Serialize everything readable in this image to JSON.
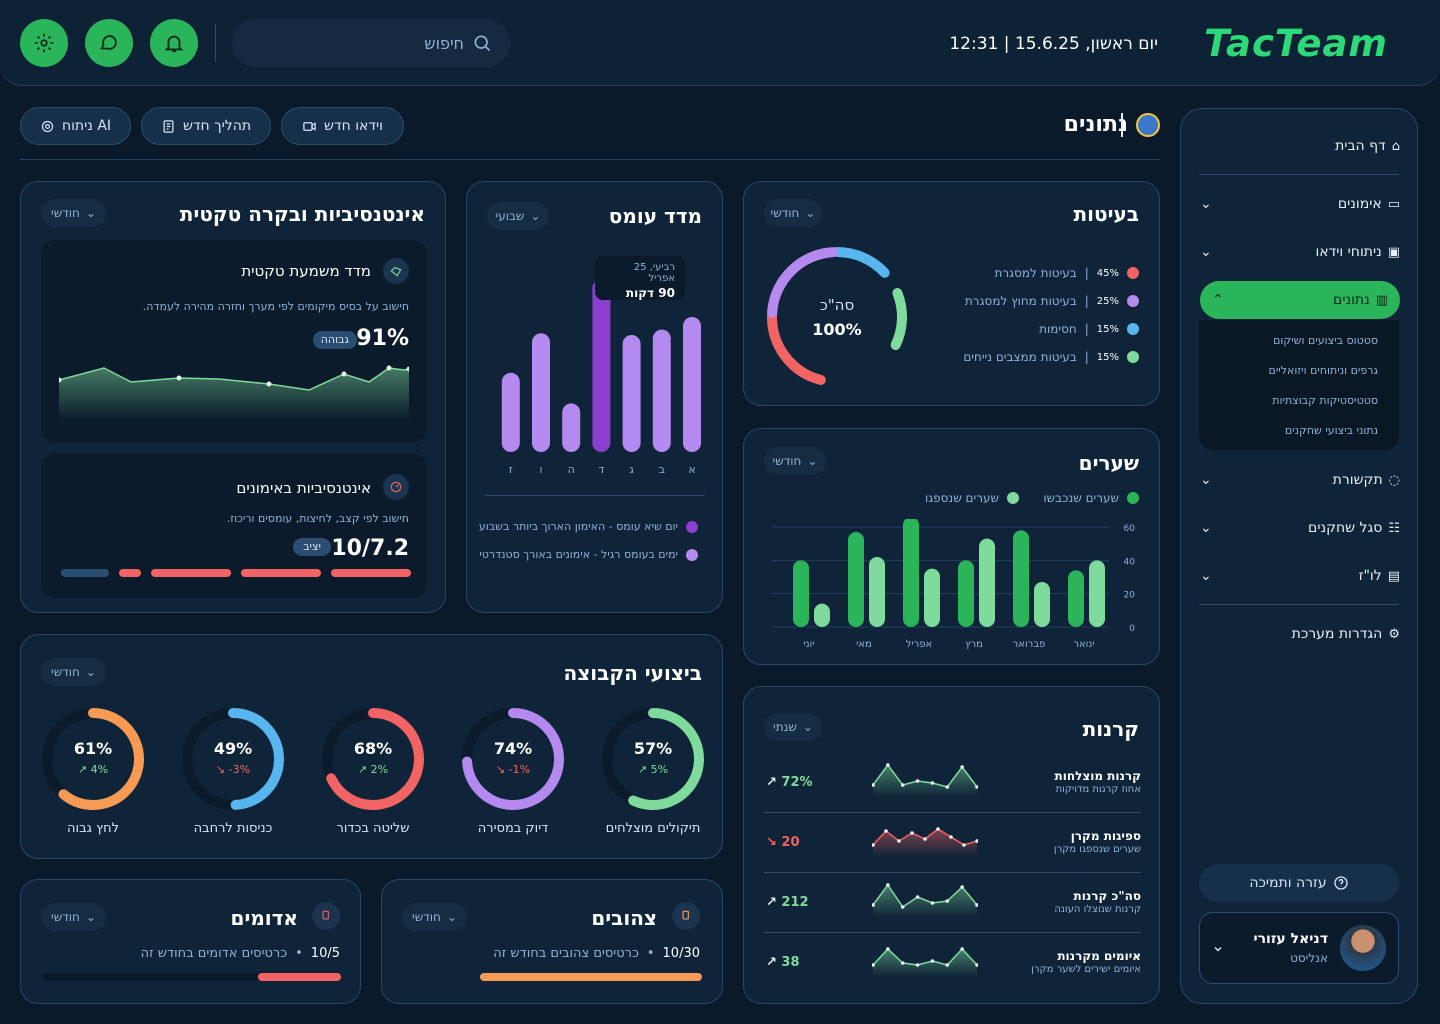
{
  "colors": {
    "accent": "#2bb55a",
    "bg": "#0b1a2b",
    "panel": "#0f2438",
    "red": "#f26363",
    "purple": "#b58af0",
    "blue": "#58b6ef",
    "green": "#7fdb9c",
    "orange": "#f79a54"
  },
  "header": {
    "brand": "TacTeam",
    "datetime": "יום ראשון, 15.6.25 | 12:31",
    "search_placeholder": "חיפוש",
    "icons": [
      "settings-icon",
      "chat-icon",
      "bell-icon"
    ]
  },
  "page": {
    "title": "נתונים"
  },
  "actions": [
    {
      "label": "וידאו חדש",
      "icon": "video-icon"
    },
    {
      "label": "תהליך חדש",
      "icon": "document-icon"
    },
    {
      "label": "ניתוח AI",
      "icon": "ai-icon"
    }
  ],
  "sidebar": {
    "items": [
      {
        "label": "דף הבית",
        "icon": "home-icon",
        "chevron": false
      },
      {
        "label": "אימונים",
        "icon": "monitor-icon",
        "chevron": true
      },
      {
        "label": "ניתוחי וידאו",
        "icon": "video-icon",
        "chevron": true
      },
      {
        "label": "נתונים",
        "icon": "chart-icon",
        "chevron": true,
        "active": true
      },
      {
        "label": "תקשורת",
        "icon": "chat-icon",
        "chevron": true
      },
      {
        "label": "סגל שחקנים",
        "icon": "team-icon",
        "chevron": true
      },
      {
        "label": "לו\"ז",
        "icon": "calendar-icon",
        "chevron": true
      },
      {
        "label": "הגדרות מערכת",
        "icon": "settings-icon",
        "chevron": false
      }
    ],
    "subitems": [
      "סטטוס ביצועים ושיקום",
      "גרפים וניתוחים ויזואליים",
      "סטטיסטיקות קבוצתיות",
      "נתוני ביצועי שחקנים"
    ],
    "help": "עזרה ותמיכה",
    "user": {
      "name": "דניאל עזורי",
      "role": "אנליסט"
    }
  },
  "problems": {
    "title": "בעיטות",
    "period": "חודשי",
    "center_label": "סה\"כ",
    "center_value": "100%",
    "items": [
      {
        "pct": "45%",
        "label": "בעיטות למסגרת",
        "color": "#f26363",
        "value": 45
      },
      {
        "pct": "25%",
        "label": "בעיטות מחוץ למסגרת",
        "color": "#b58af0",
        "value": 25
      },
      {
        "pct": "15%",
        "label": "חסימות",
        "color": "#58b6ef",
        "value": 15
      },
      {
        "pct": "15%",
        "label": "בעיטות ממצבים נייחים",
        "color": "#7fdb9c",
        "value": 15
      }
    ]
  },
  "load": {
    "title": "מדד עומס",
    "period": "שבועי",
    "tooltip": {
      "date": "רביעי, 25 אפריל",
      "value": "90 דקות"
    },
    "legend": [
      "יום שיא עומס - האימון הארוך ביותר בשבוע",
      "ימים בעומס רגיל - אימונים באורך סטנדרטי"
    ],
    "chart_data": {
      "type": "bar",
      "categories": [
        "א",
        "ב",
        "ג",
        "ד",
        "ה",
        "ו",
        "ז"
      ],
      "values": [
        75,
        68,
        65,
        96,
        27,
        66,
        44
      ],
      "highlight": "ד"
    }
  },
  "intensity": {
    "title": "אינטנסיביות ובקרה טקטית",
    "period": "חודשי",
    "tactical": {
      "title": "מדד משמעת טקטית",
      "desc": "חישוב על בסיס מיקומים לפי מערך וחזרה מהירה לעמדה.",
      "value": "91%",
      "badge": "גבוהה",
      "chart_data": {
        "type": "area",
        "values": [
          40,
          52,
          38,
          42,
          41,
          36,
          30,
          46,
          38,
          52,
          50,
          51
        ]
      }
    },
    "training": {
      "title": "אינטנסיביות באימונים",
      "desc": "חישוב לפי קצב, לחיצות, עומסים וריכוז.",
      "value": "10/7.2",
      "badge": "יציב",
      "segments": 5,
      "filled": 4
    }
  },
  "goals": {
    "title": "שערים",
    "period": "חודשי",
    "legend": [
      "שערים שנכבשו",
      "שערים שנספגו"
    ],
    "chart_data": {
      "type": "bar",
      "categories": [
        "ינואר",
        "פברואר",
        "מרץ",
        "אפריל",
        "מאי",
        "יוני"
      ],
      "series": [
        {
          "name": "שערים שנכבשו",
          "values": [
            34,
            58,
            40,
            66,
            57,
            40
          ]
        },
        {
          "name": "שערים שנספגו",
          "values": [
            40,
            27,
            53,
            35,
            42,
            14
          ]
        }
      ],
      "ylim": [
        0,
        60
      ],
      "yticks": [
        "60",
        "40",
        "20",
        "0"
      ]
    }
  },
  "team": {
    "title": "ביצועי הקבוצה",
    "period": "חודשי",
    "items": [
      {
        "label": "תיקולים מוצלחים",
        "value": "57%",
        "change": "5%",
        "dir": "up",
        "color": "#7fdb9c",
        "pct": 57
      },
      {
        "label": "דיוק במסירה",
        "value": "74%",
        "change": "-1%",
        "dir": "down",
        "color": "#b58af0",
        "pct": 74
      },
      {
        "label": "שליטה בכדור",
        "value": "68%",
        "change": "2%",
        "dir": "up",
        "color": "#f26363",
        "pct": 68
      },
      {
        "label": "כניסות לרחבה",
        "value": "49%",
        "change": "-3%",
        "dir": "down",
        "color": "#58b6ef",
        "pct": 49
      },
      {
        "label": "לחץ גבוה",
        "value": "61%",
        "change": "4%",
        "dir": "up",
        "color": "#f79a54",
        "pct": 61
      }
    ]
  },
  "cards": {
    "red": {
      "title": "אדומים",
      "period": "חודשי",
      "count": "10/5",
      "text": "כרטיסים אדומים בחודש זה",
      "fill": 0.5,
      "color": "#f26363"
    },
    "yellow": {
      "title": "צהובים",
      "period": "חודשי",
      "count": "10/30",
      "text": "כרטיסים צהובים בחודש זה",
      "fill": 1.0,
      "color": "#f79a54"
    }
  },
  "corners": {
    "title": "קרנות",
    "period": "שנתי",
    "items": [
      {
        "title": "קרנות מוצלחות",
        "sub": "אחוז קרנות מדויקות",
        "value": "72%",
        "dir": "up",
        "color": "#7fdb9c",
        "chart_data": {
          "type": "area",
          "values": [
            10,
            30,
            10,
            14,
            12,
            8,
            28,
            8
          ]
        }
      },
      {
        "title": "ספיגות מקרן",
        "sub": "שערים שנספגו מקרן",
        "value": "20",
        "dir": "down",
        "color": "#f26363",
        "chart_data": {
          "type": "area",
          "values": [
            10,
            24,
            14,
            22,
            16,
            26,
            18,
            10,
            14
          ]
        }
      },
      {
        "title": "סה\"כ קרנות",
        "sub": "קרנות שנוצלו העונה",
        "value": "212",
        "dir": "up",
        "color": "#7fdb9c",
        "chart_data": {
          "type": "area",
          "values": [
            10,
            30,
            8,
            18,
            12,
            14,
            28,
            10
          ]
        }
      },
      {
        "title": "איומים מקרנות",
        "sub": "איומים ישירים לשער מקרן",
        "value": "38",
        "dir": "up",
        "color": "#7fdb9c",
        "chart_data": {
          "type": "area",
          "values": [
            10,
            26,
            12,
            10,
            14,
            10,
            26,
            10
          ]
        }
      }
    ]
  }
}
